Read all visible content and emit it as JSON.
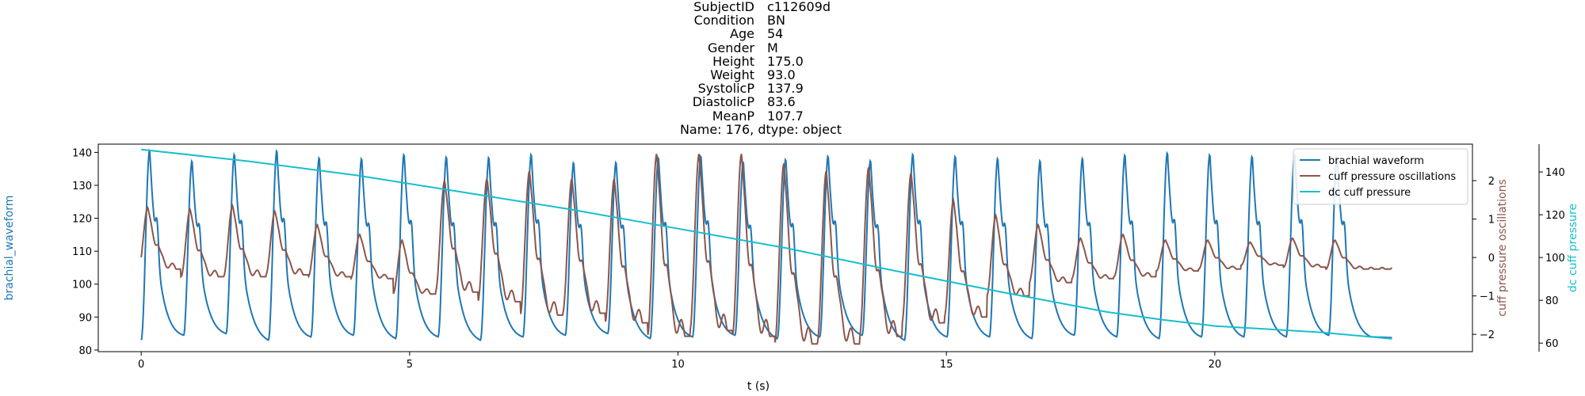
{
  "title": {
    "rows": [
      {
        "key": "SubjectID",
        "value": "c112609d"
      },
      {
        "key": "Condition",
        "value": "BN"
      },
      {
        "key": "Age",
        "value": "54"
      },
      {
        "key": "Gender",
        "value": "M"
      },
      {
        "key": "Height",
        "value": "175.0"
      },
      {
        "key": "Weight",
        "value": "93.0"
      },
      {
        "key": "SystolicP",
        "value": "137.9"
      },
      {
        "key": "DiastolicP",
        "value": "83.6"
      },
      {
        "key": "MeanP",
        "value": "107.7"
      }
    ],
    "footer": "Name: 176, dtype: object"
  },
  "chart_data": {
    "type": "line",
    "xlabel": "t (s)",
    "xlim": [
      -0.8,
      24.8
    ],
    "x_ticks": [
      0,
      5,
      10,
      15,
      20
    ],
    "axes": {
      "left": {
        "label": "brachial_waveform",
        "color": "#1f77b4",
        "ylim": [
          79.5,
          142.5
        ],
        "ticks": [
          80,
          90,
          100,
          110,
          120,
          130,
          140
        ]
      },
      "right": {
        "label": "cuff pressure oscillations",
        "color": "#8c564b",
        "ylim": [
          -2.45,
          2.95
        ],
        "ticks": [
          -2,
          -1,
          0,
          1,
          2
        ]
      },
      "far_right": {
        "label": "dc cuff pressure",
        "color": "#17becf",
        "ylim": [
          56,
          153
        ],
        "ticks": [
          60,
          80,
          100,
          120,
          140
        ]
      }
    },
    "series": [
      {
        "name": "brachial waveform",
        "axis": "left",
        "color": "#1f77b4",
        "description": "periodic arterial pulse, ~0.79 s period, systolic peaks ~137-140, diastolic troughs ~83-86",
        "period_s": 0.79,
        "t_start": 0.0,
        "t_end": 23.3,
        "peaks": [
          140.5,
          137.5,
          140,
          140.5,
          138.5,
          138.5,
          139.5,
          139,
          138.5,
          139.5,
          137,
          137.5,
          138.5,
          139,
          137.5,
          138,
          139,
          138,
          139.5,
          139,
          138.5,
          137.5,
          138.5,
          139.5,
          140,
          139.5,
          139,
          139.5,
          139
        ],
        "troughs": [
          83,
          84.5,
          85,
          83,
          84,
          84.5,
          83.5,
          84,
          83,
          84,
          84.5,
          85,
          83.5,
          84,
          84.5,
          83.5,
          84,
          84.5,
          83,
          84,
          84,
          83.5,
          84.5,
          84,
          83.5,
          84,
          84,
          84,
          84.5,
          84
        ]
      },
      {
        "name": "cuff pressure oscillations",
        "axis": "right",
        "color": "#8c564b",
        "description": "oscillometric pulses, amplitude grows to a maximum near t=10-11 s and decays toward the end",
        "peaks": [
          1.3,
          1.25,
          1.35,
          1.2,
          0.85,
          0.6,
          0.45,
          2.0,
          2.05,
          2.25,
          2.05,
          2.05,
          2.7,
          2.7,
          2.7,
          2.45,
          2.25,
          2.35,
          2.2,
          1.5,
          1.1,
          0.85,
          0.5,
          0.6,
          0.45,
          0.45,
          0.4,
          0.5,
          0.45
        ],
        "troughs": [
          -0.3,
          -0.5,
          -0.5,
          -0.45,
          -0.5,
          -0.55,
          -0.95,
          -0.9,
          -1.15,
          -1.5,
          -1.45,
          -1.7,
          -2.05,
          -1.9,
          -2.05,
          -2.25,
          -2.25,
          -2.05,
          -1.7,
          -1.55,
          -1.0,
          -0.65,
          -0.55,
          -0.5,
          -0.35,
          -0.3,
          -0.2,
          -0.25,
          -0.3,
          -0.45
        ]
      },
      {
        "name": "dc cuff pressure",
        "axis": "far_right",
        "color": "#17becf",
        "description": "slowly deflating cuff pressure",
        "x": [
          0,
          2,
          4,
          6,
          8,
          10,
          12,
          14,
          16,
          18,
          19,
          20,
          21,
          22,
          23.3
        ],
        "y": [
          150.5,
          145,
          138.5,
          130.5,
          122.5,
          113.5,
          104.5,
          94,
          84,
          74.5,
          71,
          68,
          66.5,
          65,
          62
        ]
      }
    ],
    "legend": {
      "placement": "upper right",
      "entries": [
        "brachial waveform",
        "cuff pressure oscillations",
        "dc cuff pressure"
      ]
    }
  }
}
